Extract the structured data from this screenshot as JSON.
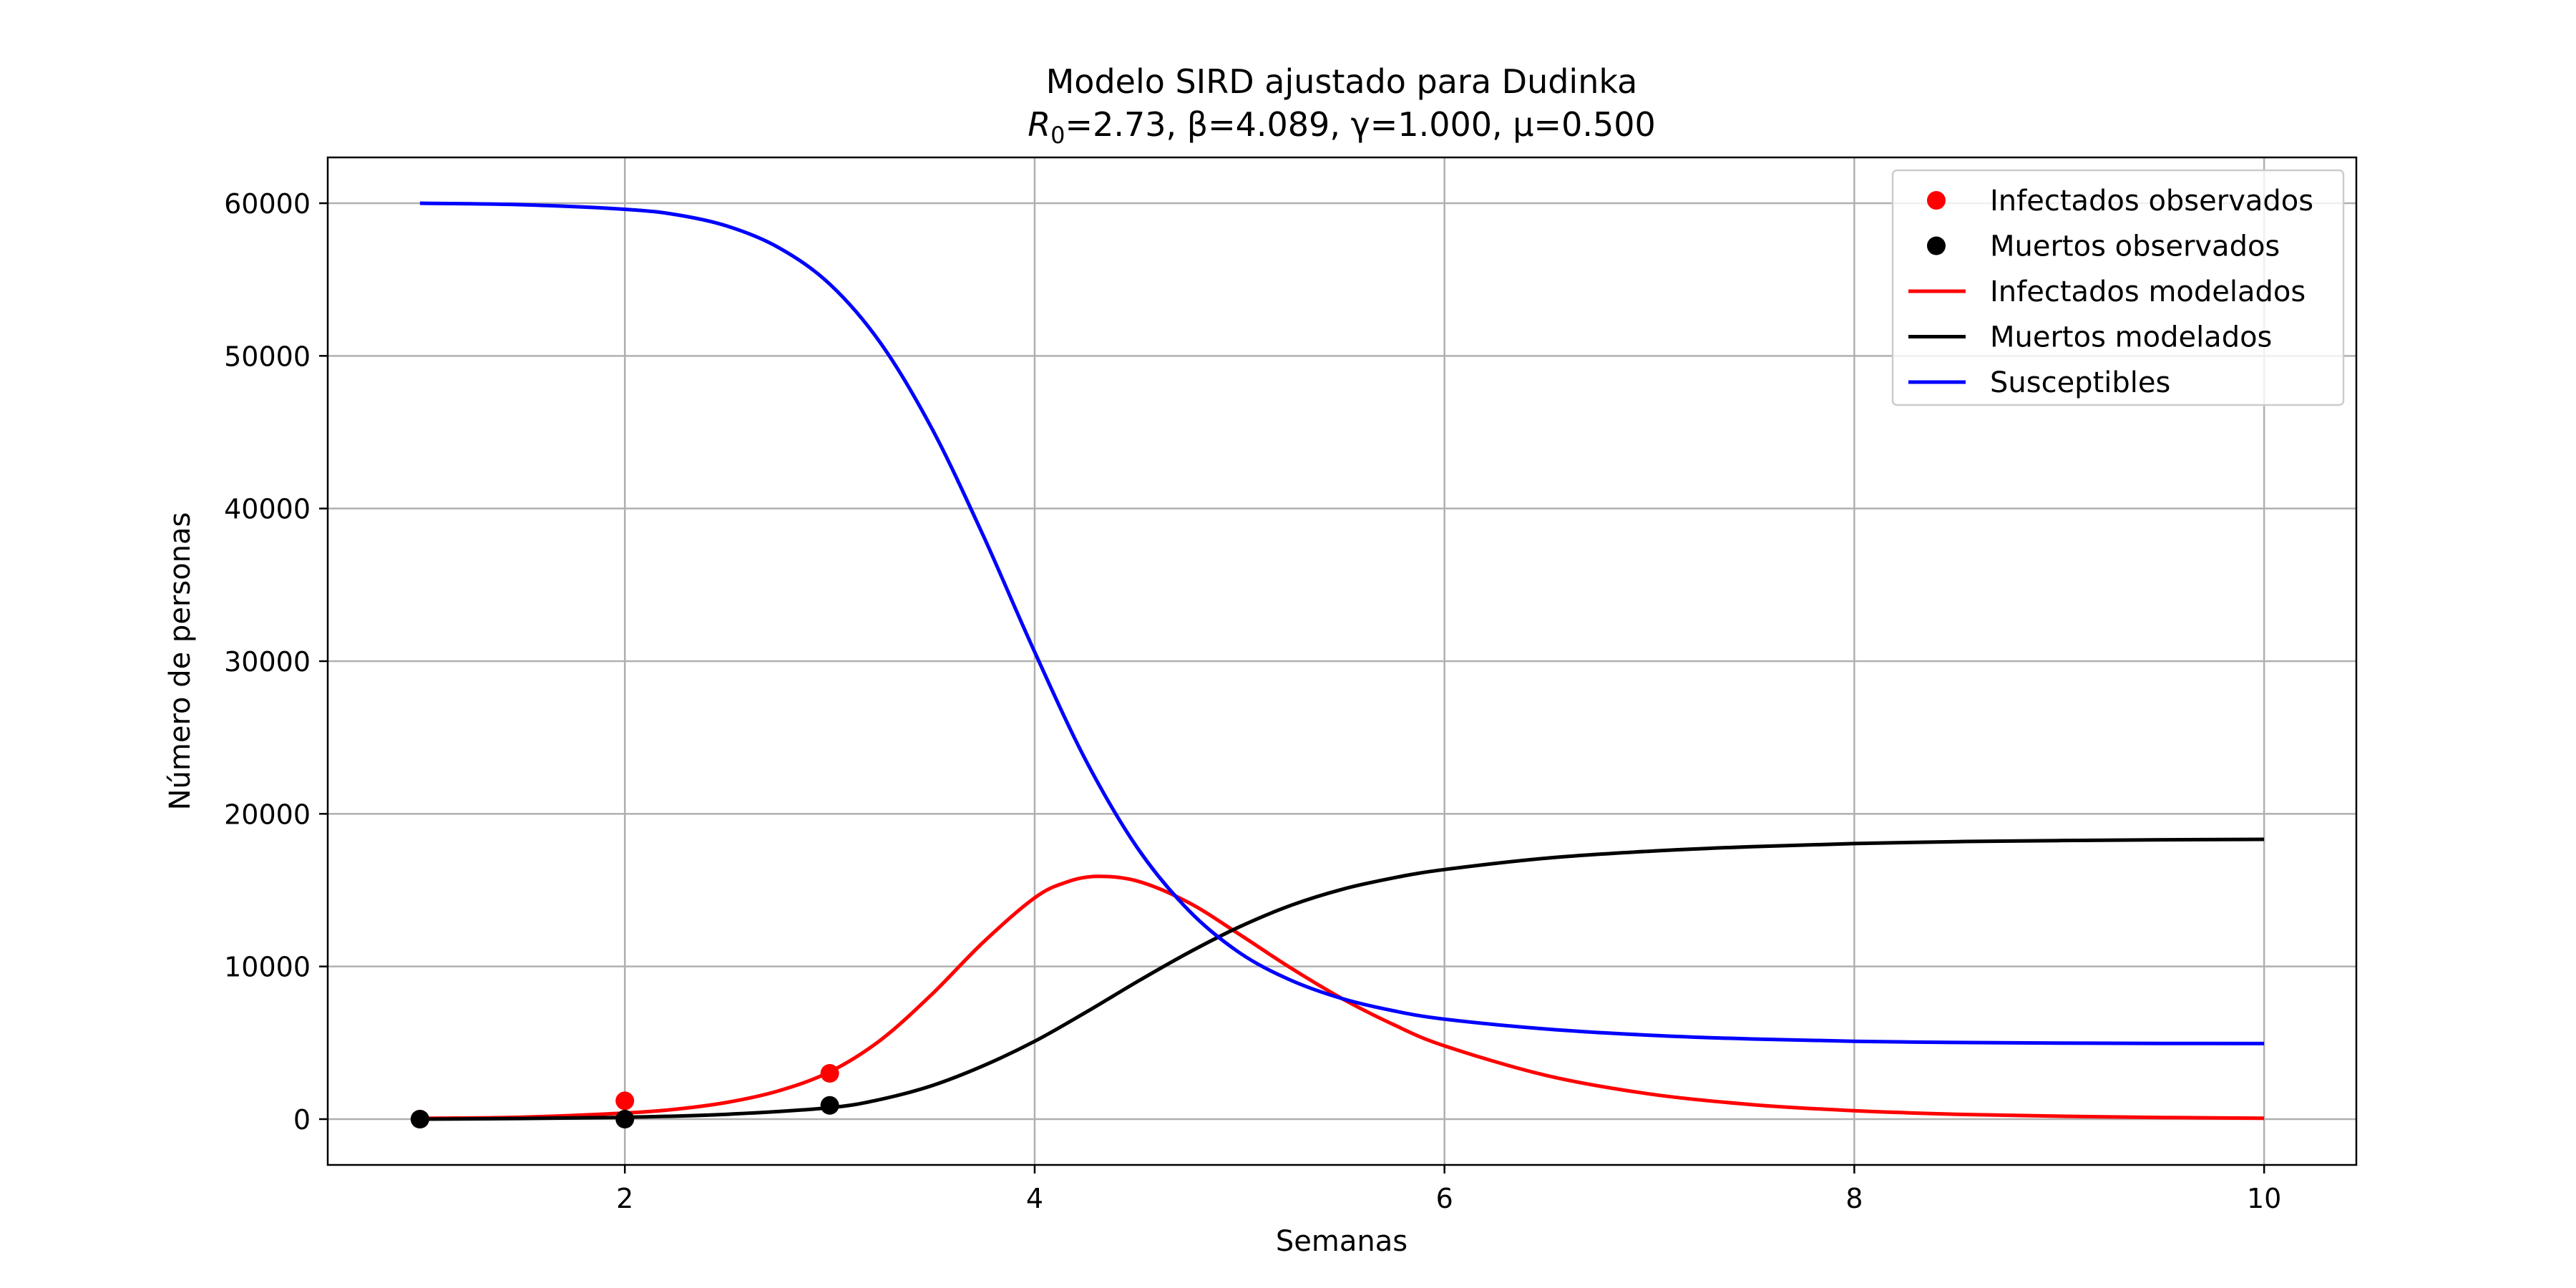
{
  "chart_data": {
    "type": "line",
    "title": "Modelo SIRD ajustado para Dudinka",
    "subtitle": {
      "r0_symbol": "R",
      "r0_subscript": "0",
      "params": "=2.73, β=4.089, γ=1.000, μ=0.500"
    },
    "xlabel": "Semanas",
    "ylabel": "Número de personas",
    "xlim": [
      0.55,
      10.45
    ],
    "ylim": [
      -3000,
      63000
    ],
    "xticks": [
      2,
      4,
      6,
      8,
      10
    ],
    "yticks": [
      0,
      10000,
      20000,
      30000,
      40000,
      50000,
      60000
    ],
    "grid": true,
    "legend_position": "top-right",
    "colors": {
      "infected": "#ff0000",
      "dead": "#000000",
      "susceptible": "#0000ff",
      "grid": "#b0b0b0"
    },
    "series": [
      {
        "name": "Infectados observados",
        "kind": "scatter",
        "color": "#ff0000",
        "x": [
          1,
          2,
          3
        ],
        "y": [
          0,
          1200,
          3000
        ]
      },
      {
        "name": "Muertos observados",
        "kind": "scatter",
        "color": "#000000",
        "x": [
          1,
          2,
          3
        ],
        "y": [
          0,
          0,
          900
        ]
      },
      {
        "name": "Infectados modelados",
        "kind": "line",
        "color": "#ff0000",
        "x": [
          1,
          1.5,
          2,
          2.25,
          2.5,
          2.75,
          3,
          3.25,
          3.5,
          3.75,
          4,
          4.15,
          4.3,
          4.5,
          4.75,
          5,
          5.25,
          5.5,
          5.75,
          6,
          6.5,
          7,
          7.5,
          8,
          8.5,
          9,
          9.5,
          10
        ],
        "y": [
          50,
          130,
          400,
          650,
          1100,
          1850,
          3100,
          5200,
          8200,
          11600,
          14500,
          15500,
          15900,
          15600,
          14200,
          12100,
          9900,
          7900,
          6200,
          4800,
          2850,
          1650,
          950,
          550,
          320,
          190,
          110,
          60
        ]
      },
      {
        "name": "Muertos modelados",
        "kind": "line",
        "color": "#000000",
        "x": [
          1,
          1.5,
          2,
          2.5,
          3,
          3.25,
          3.5,
          3.75,
          4,
          4.25,
          4.5,
          4.75,
          5,
          5.25,
          5.5,
          5.75,
          6,
          6.5,
          7,
          7.5,
          8,
          8.5,
          9,
          9.5,
          10
        ],
        "y": [
          0,
          40,
          120,
          320,
          750,
          1300,
          2200,
          3500,
          5100,
          7000,
          9000,
          10900,
          12600,
          14000,
          15050,
          15800,
          16350,
          17100,
          17550,
          17850,
          18050,
          18180,
          18250,
          18300,
          18330
        ]
      },
      {
        "name": "Susceptibles",
        "kind": "line",
        "color": "#0000ff",
        "x": [
          1,
          1.5,
          2,
          2.25,
          2.5,
          2.75,
          3,
          3.25,
          3.5,
          3.75,
          4,
          4.25,
          4.5,
          4.75,
          5,
          5.25,
          5.5,
          5.75,
          6,
          6.5,
          7,
          7.5,
          8,
          8.5,
          9,
          9.5,
          10
        ],
        "y": [
          60000,
          59900,
          59600,
          59250,
          58500,
          57100,
          54700,
          50800,
          45200,
          38200,
          30600,
          23500,
          17800,
          13700,
          10900,
          9100,
          7900,
          7100,
          6550,
          5900,
          5500,
          5250,
          5100,
          5020,
          4980,
          4960,
          4950
        ]
      }
    ]
  }
}
